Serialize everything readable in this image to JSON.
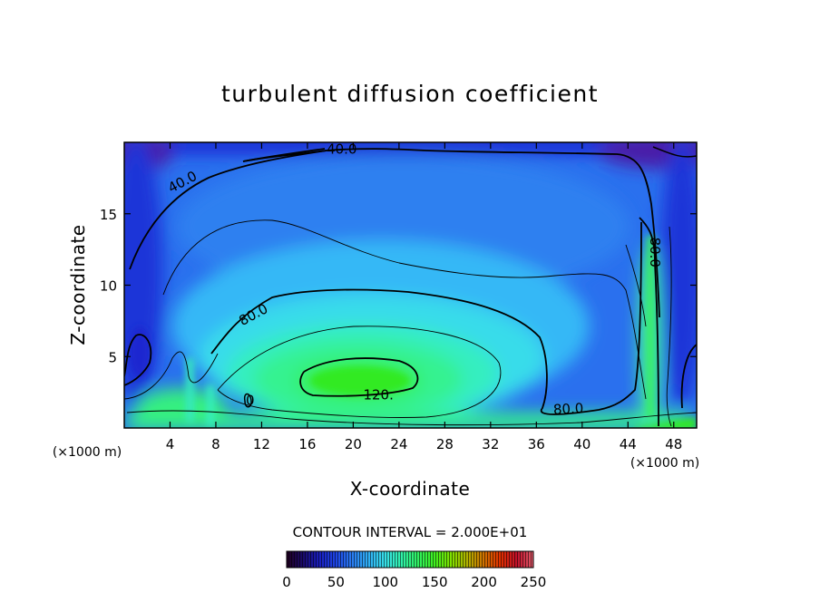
{
  "chart_data": {
    "type": "heatmap",
    "title": "turbulent diffusion coefficient",
    "xlabel": "X-coordinate",
    "ylabel": "Z-coordinate",
    "x_unit": "(×1000 m)",
    "x_unit_right": "(×1000 m)",
    "xlim": [
      0,
      50
    ],
    "ylim": [
      0,
      20
    ],
    "x_ticks": [
      4,
      8,
      12,
      16,
      20,
      24,
      28,
      32,
      36,
      40,
      44,
      48
    ],
    "y_ticks": [
      5,
      10,
      15
    ],
    "contour_interval_text": "CONTOUR INTERVAL = 2.000E+01",
    "contour_interval": 20,
    "contour_labels": [
      {
        "text": "40.0",
        "x": 5.1,
        "y": 17.2,
        "rotate": -28
      },
      {
        "text": "40.0",
        "x": 19,
        "y": 19.5,
        "rotate": 0
      },
      {
        "text": "80.0",
        "x": 11.3,
        "y": 7.9,
        "rotate": -28
      },
      {
        "text": "120.",
        "x": 22.2,
        "y": 2.3,
        "rotate": 0
      },
      {
        "text": "80.0",
        "x": 38.8,
        "y": 1.3,
        "rotate": -3
      },
      {
        "text": "80.0",
        "x": 46.3,
        "y": 12.3,
        "rotate": 90
      },
      {
        "text": "0",
        "x": 11,
        "y": 1.9,
        "rotate": 0
      }
    ],
    "colorbar": {
      "min": 0,
      "max": 250,
      "ticks": [
        "0",
        "50",
        "100",
        "150",
        "200",
        "250"
      ],
      "colors": [
        "#200020",
        "#1a0a6a",
        "#1a20c0",
        "#1e46e6",
        "#2a7cf0",
        "#30b0f4",
        "#38e0e8",
        "#30f0a8",
        "#30f060",
        "#40f020",
        "#80e000",
        "#b0b000",
        "#d07000",
        "#e03000",
        "#c0102a",
        "#e05a6a"
      ]
    },
    "field_colors": {
      "violet": "#4a1aa8",
      "deep_blue": "#1a28d0",
      "blue": "#2456e8",
      "mid_blue": "#2e8cf2",
      "light_blue": "#32b8f6",
      "cyan": "#38dcea",
      "aqua": "#36eec0",
      "spring_green": "#34f290",
      "green": "#38f060",
      "bright_green": "#30ea20"
    }
  }
}
